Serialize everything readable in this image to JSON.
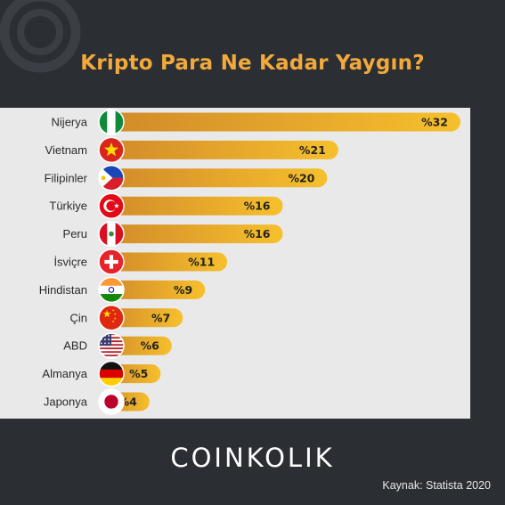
{
  "header": {
    "title": "Kripto Para Ne Kadar Yaygın?"
  },
  "footer": {
    "brand": "COINKOLIK",
    "source": "Kaynak: Statista 2020"
  },
  "colors": {
    "background": "#2b2e33",
    "panel": "#e9e9ea",
    "bar_start": "#d18a2a",
    "bar_end": "#f6c02c",
    "title": "#f2a93b"
  },
  "chart_data": {
    "type": "bar",
    "orientation": "horizontal",
    "title": "Kripto Para Ne Kadar Yaygın?",
    "categories": [
      "Nijerya",
      "Vietnam",
      "Filipinler",
      "Türkiye",
      "Peru",
      "İsviçre",
      "Hindistan",
      "Çin",
      "ABD",
      "Almanya",
      "Japonya"
    ],
    "values": [
      32,
      21,
      20,
      16,
      16,
      11,
      9,
      7,
      6,
      5,
      4
    ],
    "value_labels": [
      "%32",
      "%21",
      "%20",
      "%16",
      "%16",
      "%11",
      "%9",
      "%7",
      "%6",
      "%5",
      "%4"
    ],
    "flags": [
      "nigeria-flag-icon",
      "vietnam-flag-icon",
      "philippines-flag-icon",
      "turkey-flag-icon",
      "peru-flag-icon",
      "switzerland-flag-icon",
      "india-flag-icon",
      "china-flag-icon",
      "usa-flag-icon",
      "germany-flag-icon",
      "japan-flag-icon"
    ],
    "xlim": [
      0,
      32
    ],
    "unit": "%"
  }
}
